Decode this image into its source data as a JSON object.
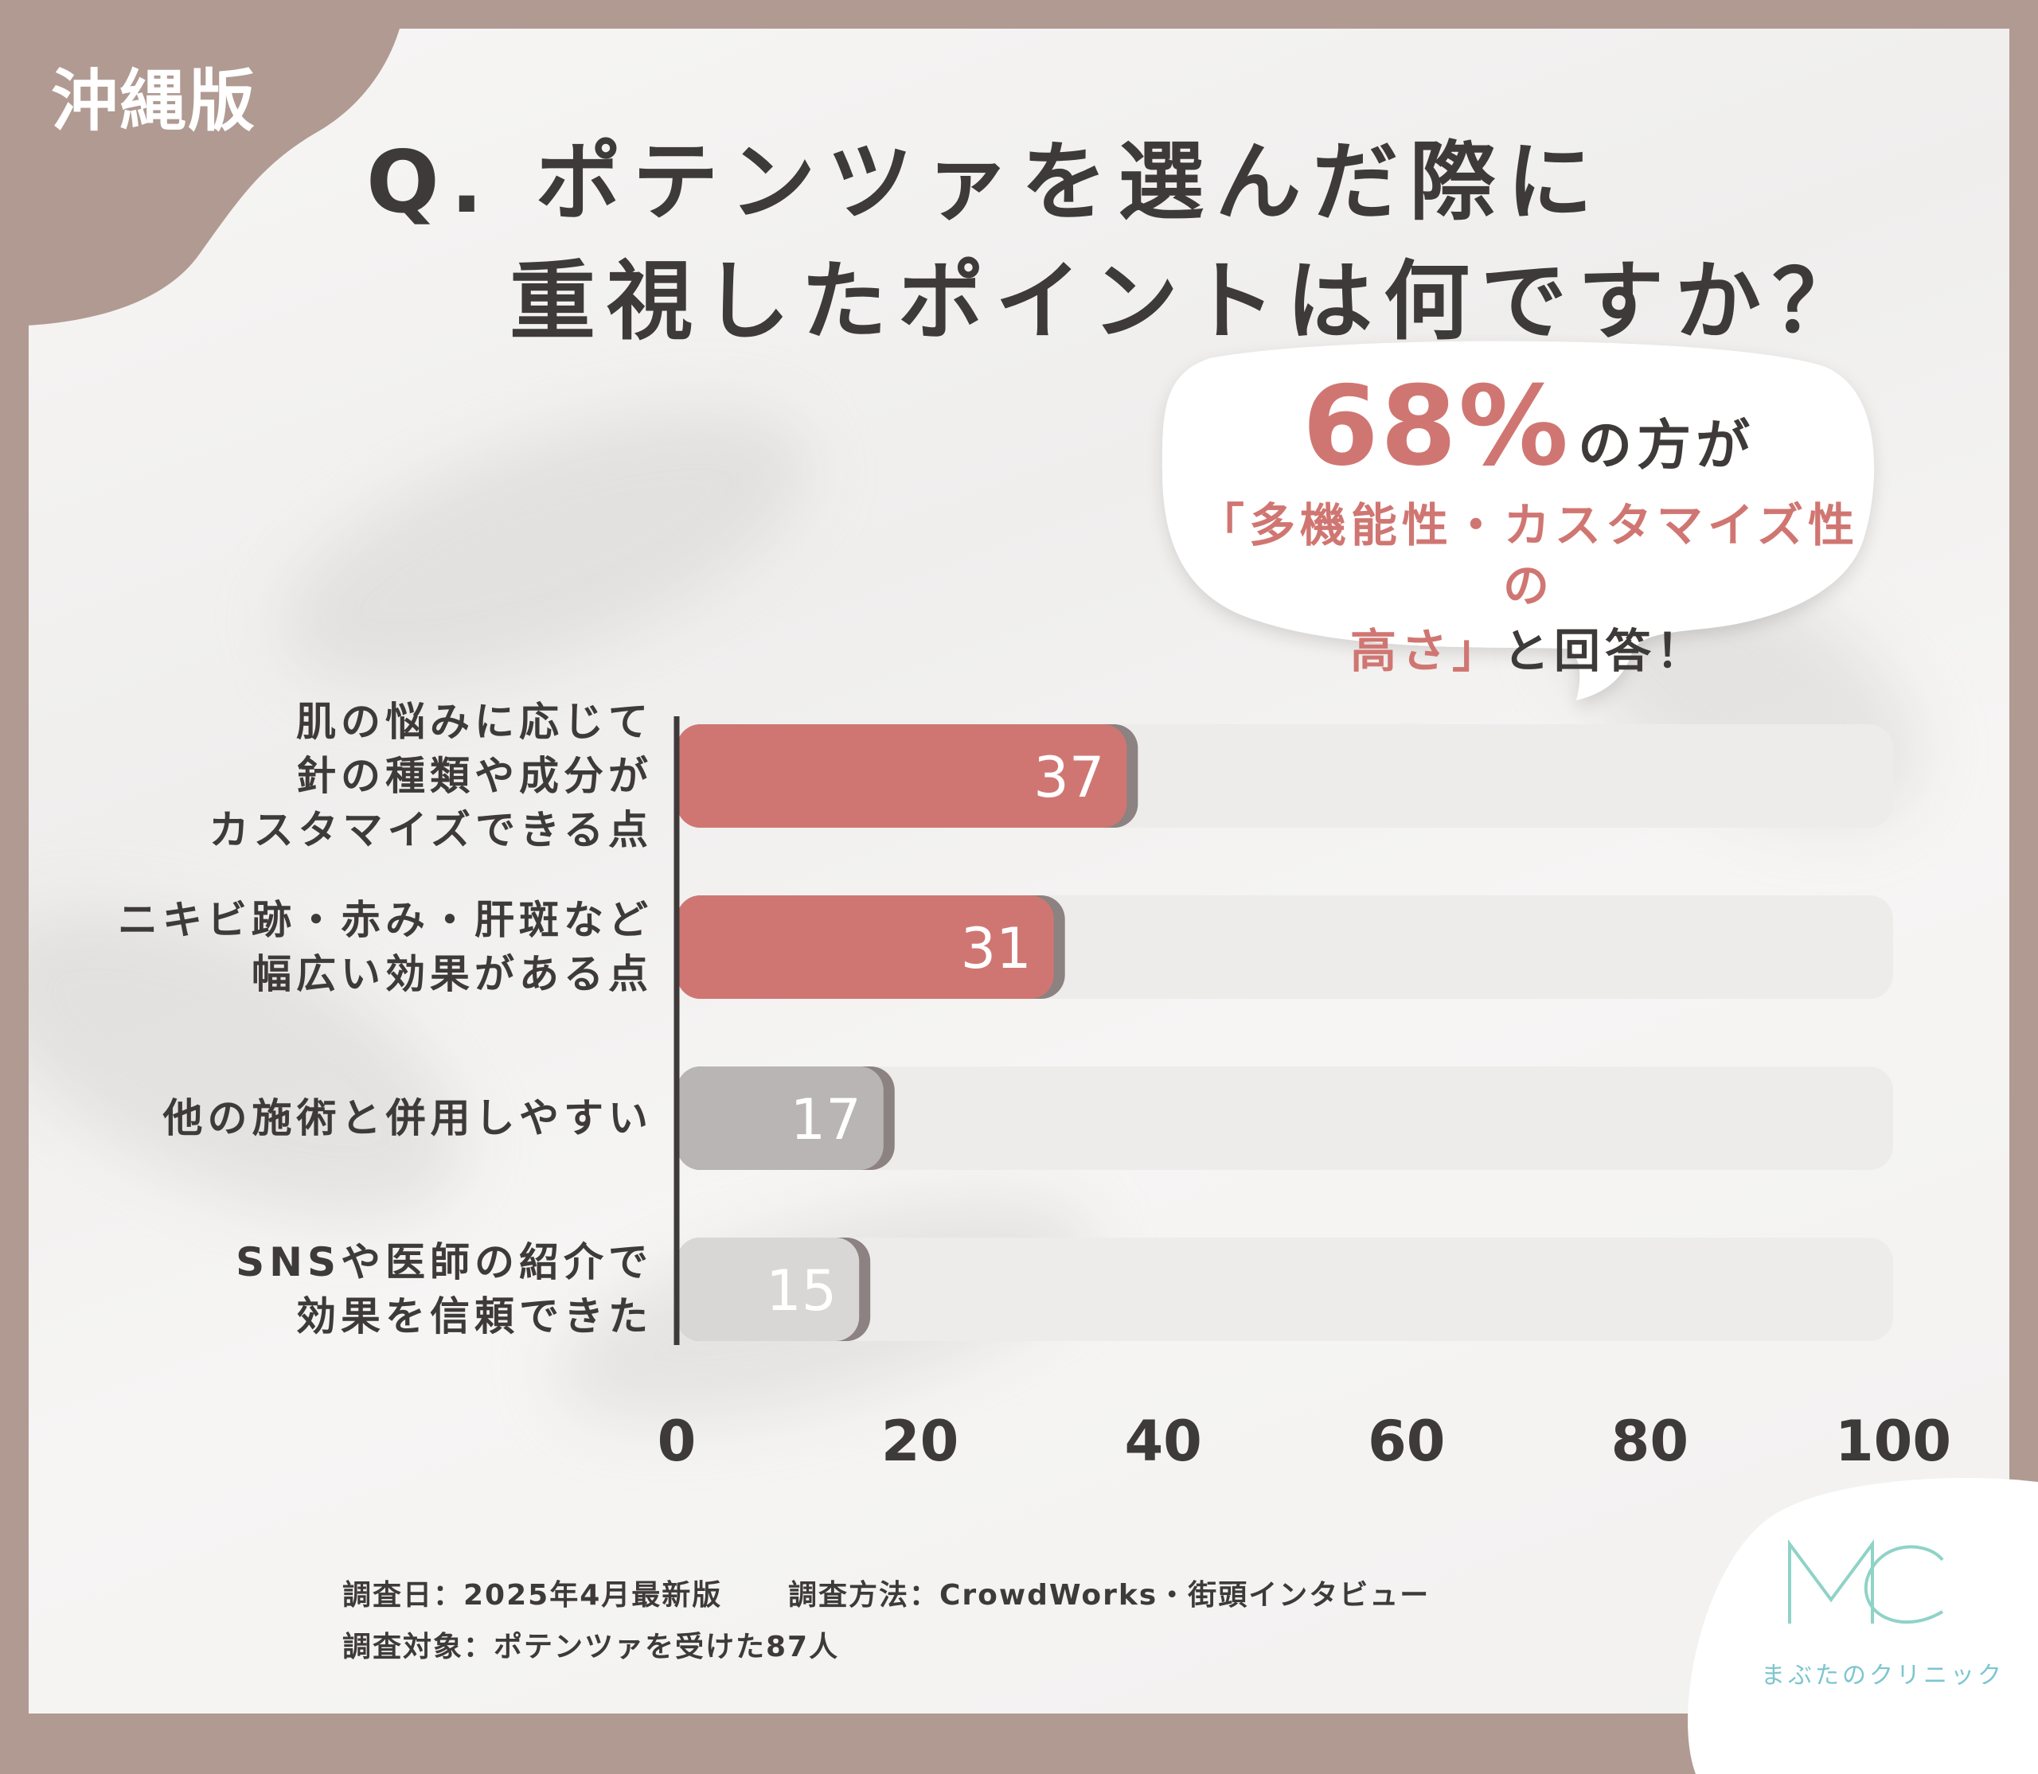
{
  "region_tag": "沖縄版",
  "title": {
    "line1": "Q. ポテンツァを選んだ際に",
    "line2": "重視したポイントは何ですか？"
  },
  "callout": {
    "percent": "68%",
    "suffix": "の方が",
    "line1": "「多機能性・カスタマイズ性の",
    "line2_highlight": "高さ」",
    "line2_rest": "と回答！"
  },
  "chart_data": {
    "type": "bar",
    "orientation": "horizontal",
    "categories": [
      [
        "肌の悩みに応じて",
        "針の種類や成分が",
        "カスタマイズできる点"
      ],
      [
        "ニキビ跡・赤み・肝斑など",
        "幅広い効果がある点"
      ],
      [
        "他の施術と併用しやすい"
      ],
      [
        "SNSや医師の紹介で",
        "効果を信頼できた"
      ]
    ],
    "values": [
      37,
      31,
      17,
      15
    ],
    "value_labels": [
      "37",
      "31",
      "17",
      "15"
    ],
    "bar_colors": [
      "#d07672",
      "#d07672",
      "#b8b5b4",
      "#d9d7d6"
    ],
    "xlim": [
      0,
      100
    ],
    "xticks": [
      "0",
      "20",
      "40",
      "60",
      "80",
      "100"
    ],
    "grid": false,
    "legend": "none"
  },
  "footnotes": {
    "date": "調査日：2025年4月最新版",
    "method": "調査方法：CrowdWorks・街頭インタビュー",
    "target": "調査対象：ポテンツァを受けた87人"
  },
  "logo": {
    "mark": "MC",
    "name": "まぶたのクリニック"
  },
  "colors": {
    "frame": "#b09a92",
    "accent": "#d07672",
    "text": "#3e3a39",
    "logo": "#7dc6cf"
  }
}
